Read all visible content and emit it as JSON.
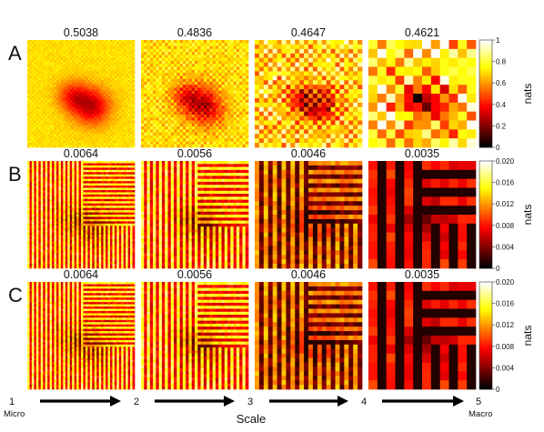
{
  "chart_data": {
    "type": "heatmap",
    "colormap": "hot",
    "xlabel": "Scale",
    "scale_steps": [
      {
        "label": "1",
        "sublabel": "Micro"
      },
      {
        "label": "2"
      },
      {
        "label": "3"
      },
      {
        "label": "4"
      },
      {
        "label": "5",
        "sublabel": "Macro"
      }
    ],
    "rows": [
      {
        "label": "A",
        "colorbar": {
          "unit": "nats",
          "range": [
            0,
            1
          ],
          "ticks": [
            "0",
            "0.2",
            "0.4",
            "0.6",
            "0.8",
            "1"
          ]
        },
        "panels": [
          {
            "title": "0.5038",
            "grid": 48
          },
          {
            "title": "0.4836",
            "grid": 36
          },
          {
            "title": "0.4647",
            "grid": 24
          },
          {
            "title": "0.4621",
            "grid": 12
          }
        ]
      },
      {
        "label": "B",
        "colorbar": {
          "unit": "nats",
          "range": [
            0,
            0.02
          ],
          "ticks": [
            "0",
            "0.004",
            "0.008",
            "0.012",
            "0.016",
            "0.020"
          ]
        },
        "panels": [
          {
            "title": "0.0064",
            "grid": 48
          },
          {
            "title": "0.0056",
            "grid": 36
          },
          {
            "title": "0.0046",
            "grid": 24
          },
          {
            "title": "0.0035",
            "grid": 12
          }
        ]
      },
      {
        "label": "C",
        "colorbar": {
          "unit": "nats",
          "range": [
            0,
            0.02
          ],
          "ticks": [
            "0",
            "0.004",
            "0.008",
            "0.012",
            "0.016",
            "0.020"
          ]
        },
        "panels": [
          {
            "title": "0.0064",
            "grid": 48
          },
          {
            "title": "0.0056",
            "grid": 36
          },
          {
            "title": "0.0046",
            "grid": 24
          },
          {
            "title": "0.0035",
            "grid": 12
          }
        ]
      }
    ]
  }
}
